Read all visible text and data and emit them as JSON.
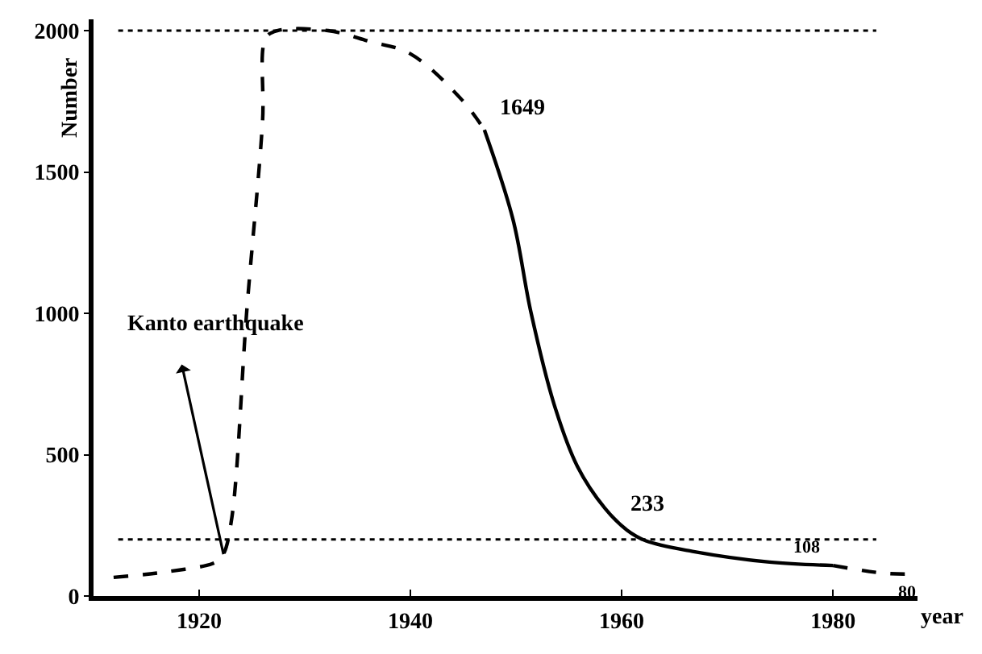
{
  "chart_data": {
    "type": "line",
    "xlabel": "year",
    "ylabel": "Number",
    "series": [
      {
        "color": "#000000",
        "line_style": "dashed",
        "x": [
          1911.9,
          1917.2,
          1921.6,
          1922.3,
          1923.1,
          1924.5,
          1926,
          1926.3,
          1927.4,
          1932.2,
          1936.1,
          1940,
          1944.9,
          1947
        ],
        "values": [
          66,
          87,
          120,
          148,
          279,
          1005,
          1678,
          1973,
          2000,
          2000,
          1962,
          1918,
          1754,
          1649
        ]
      },
      {
        "color": "#000000",
        "line_style": "solid",
        "x": [
          1947,
          1949.7,
          1951.4,
          1953.6,
          1955.8,
          1958.4,
          1960.5,
          1962.3,
          1966.7,
          1974,
          1980
        ],
        "values": [
          1649,
          1333,
          1005,
          678,
          459,
          311,
          233,
          195,
          158,
          120,
          108
        ]
      },
      {
        "color": "#000000",
        "line_style": "dashed",
        "x": [
          1980,
          1985,
          1988
        ],
        "values": [
          108,
          80,
          78
        ]
      }
    ],
    "annotations": [
      {
        "text": "Kanto earthquake",
        "x": 1922.3,
        "y": 148
      },
      {
        "text": "1649",
        "x": 1947,
        "y": 1649
      },
      {
        "text": "233",
        "x": 1960.5,
        "y": 233
      },
      {
        "text": "108",
        "x": 1980,
        "y": 108
      },
      {
        "text": "80",
        "x": 1985,
        "y": 80
      }
    ],
    "ref_lines": [
      {
        "axis": "y",
        "value": 2000,
        "label": null,
        "color": "#000000",
        "line_style": "dotted"
      },
      {
        "axis": "y",
        "value": 200,
        "label": null,
        "color": "#000000",
        "line_style": "dotted"
      }
    ],
    "xlim": [
      1910,
      1988
    ],
    "ylim": [
      0,
      2040
    ],
    "xticks": [
      1920,
      1940,
      1960,
      1980
    ],
    "yticks": [
      0,
      500,
      1000,
      1500,
      2000
    ],
    "marker": "none"
  }
}
